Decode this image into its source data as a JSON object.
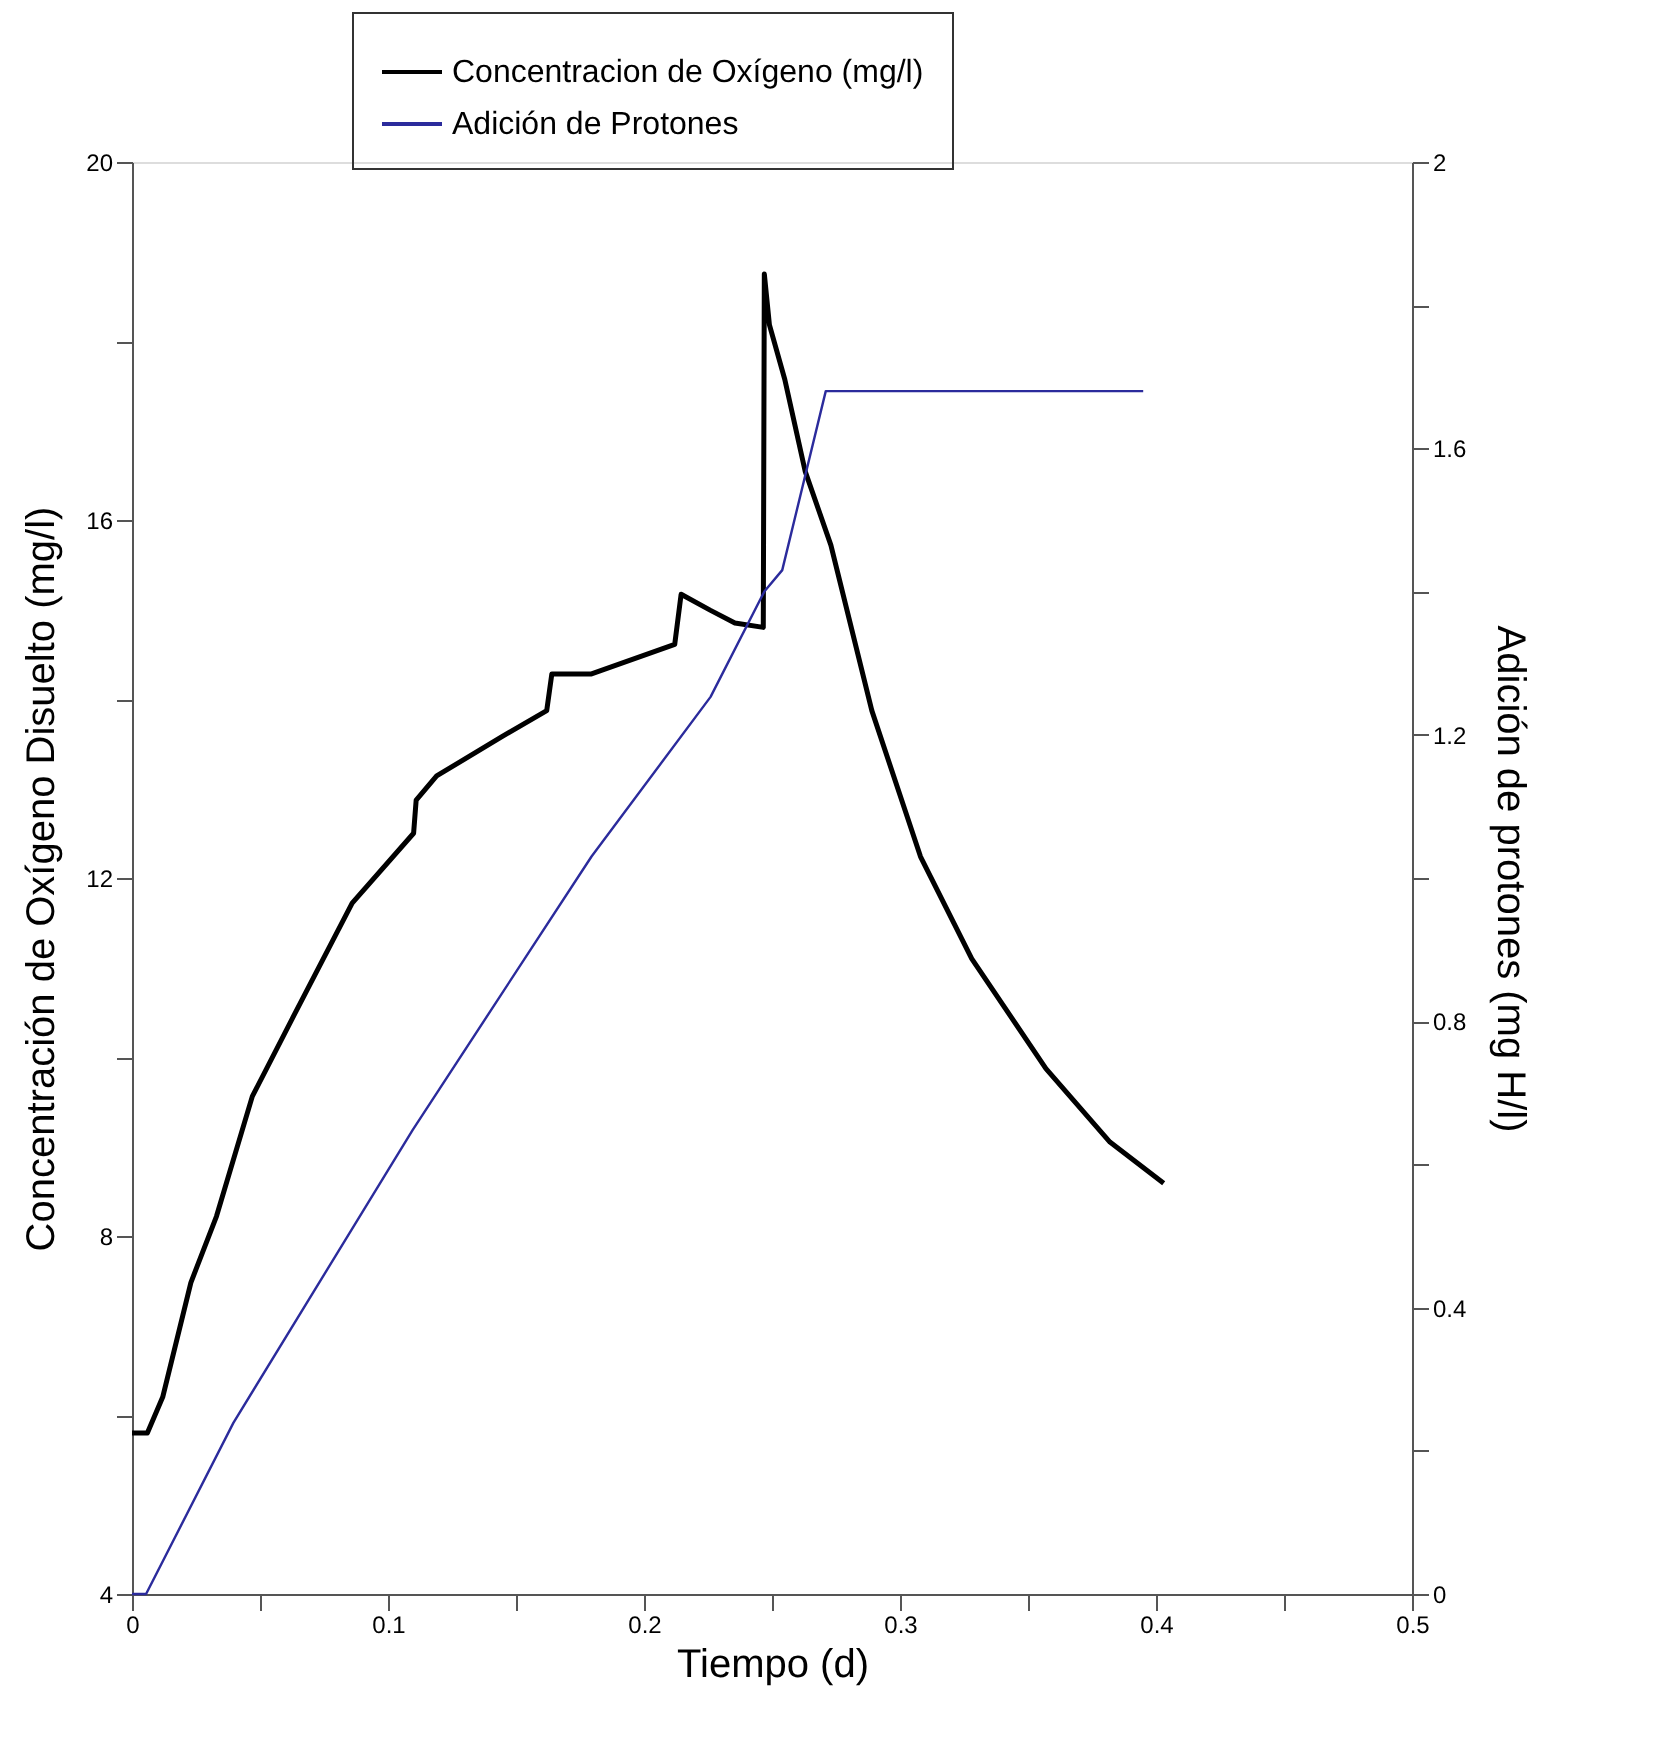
{
  "chart_data": {
    "type": "line",
    "xlabel": "Tiempo (d)",
    "ylabel": "Concentración de Oxígeno Disuelto (mg/l)",
    "y2label": "Adición de protones (mg H/l)",
    "xlim": [
      0,
      0.5
    ],
    "ylim": [
      4,
      20
    ],
    "y2lim": [
      0,
      2
    ],
    "xticks": [
      0,
      {
        "value": 0.05,
        "label": null
      },
      0.1,
      {
        "value": 0.15,
        "label": null
      },
      0.2,
      {
        "value": 0.25,
        "label": null
      },
      0.3,
      {
        "value": 0.35,
        "label": null
      },
      0.4,
      {
        "value": 0.45,
        "label": null
      },
      0.5
    ],
    "yticks": [
      4,
      {
        "value": 6,
        "label": null
      },
      8,
      {
        "value": 10,
        "label": null
      },
      12,
      {
        "value": 14,
        "label": null
      },
      16,
      {
        "value": 18,
        "label": null
      },
      20
    ],
    "y2ticks": [
      0,
      {
        "value": 0.2,
        "label": null
      },
      0.4,
      {
        "value": 0.6,
        "label": null
      },
      0.8,
      {
        "value": 1.0,
        "label": null
      },
      1.2,
      {
        "value": 1.4,
        "label": null
      },
      1.6,
      {
        "value": 1.8,
        "label": null
      },
      2
    ],
    "legend": "top",
    "grid": false,
    "marker": "none",
    "line_style": "solid",
    "series": [
      {
        "name": "Concentracion de Oxígeno (mg/l)",
        "color": "#000000",
        "x": [
          0,
          0.006,
          0.012,
          0.023,
          0.033,
          0.047,
          0.063,
          0.086,
          0.11,
          0.111,
          0.119,
          0.1445,
          0.162,
          0.164,
          0.1795,
          0.212,
          0.2145,
          0.226,
          0.2355,
          0.2466,
          0.247,
          0.249,
          0.255,
          0.263,
          0.273,
          0.289,
          0.308,
          0.328,
          0.357,
          0.382,
          0.403
        ],
        "values": [
          5.8,
          5.8,
          6.2,
          7.48,
          8.22,
          9.56,
          10.45,
          11.72,
          12.5,
          12.87,
          13.14,
          13.58,
          13.87,
          14.28,
          14.28,
          14.61,
          15.17,
          14.99,
          14.85,
          14.8,
          18.75,
          18.18,
          17.57,
          16.54,
          15.72,
          13.87,
          12.24,
          11.1,
          9.87,
          9.05,
          8.59
        ]
      },
      {
        "name": "Adición de Protones",
        "color": "#2b2b9c",
        "axis": "y2",
        "x": [
          0,
          0.0055,
          0.0396,
          0.1096,
          0.1795,
          0.226,
          0.247,
          0.254,
          0.271,
          0.395
        ],
        "values": [
          0,
          0,
          0.239,
          0.648,
          1.03,
          1.253,
          1.4,
          1.43,
          1.68,
          1.68
        ]
      }
    ]
  }
}
